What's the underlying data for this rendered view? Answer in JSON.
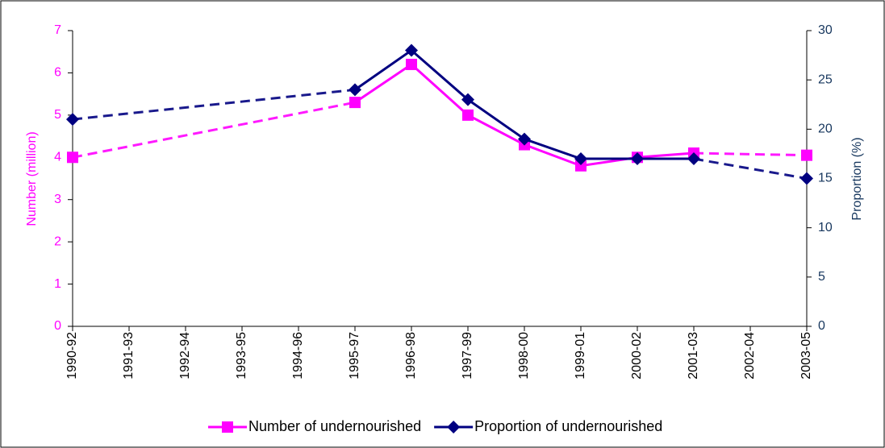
{
  "chart_data": {
    "type": "line",
    "categories": [
      "1990-92",
      "1991-93",
      "1992-94",
      "1993-95",
      "1994-96",
      "1995-97",
      "1996-98",
      "1997-99",
      "1998-00",
      "1999-01",
      "2000-02",
      "2001-03",
      "2002-04",
      "2003-05"
    ],
    "y_label": "Number (million)",
    "y2_label": "Proportion (%)",
    "ylim": [
      0,
      7
    ],
    "yticks": [
      0,
      1,
      2,
      3,
      4,
      5,
      6,
      7
    ],
    "y2lim": [
      0,
      30
    ],
    "y2ticks": [
      0,
      5,
      10,
      15,
      20,
      25,
      30
    ],
    "legend": "bottom",
    "series": [
      {
        "name": "Number of undernourished",
        "color": "#ff00ff",
        "marker": "square",
        "values": [
          4.0,
          null,
          null,
          null,
          null,
          5.3,
          6.2,
          5.0,
          4.3,
          3.8,
          4.0,
          4.1,
          null,
          4.05
        ]
      },
      {
        "name": "Proportion of undernourished",
        "color": "#000080",
        "marker": "diamond",
        "axis": "y2",
        "values": [
          21,
          null,
          null,
          null,
          null,
          24,
          28,
          23,
          19,
          17,
          17,
          17,
          null,
          15
        ]
      }
    ]
  }
}
